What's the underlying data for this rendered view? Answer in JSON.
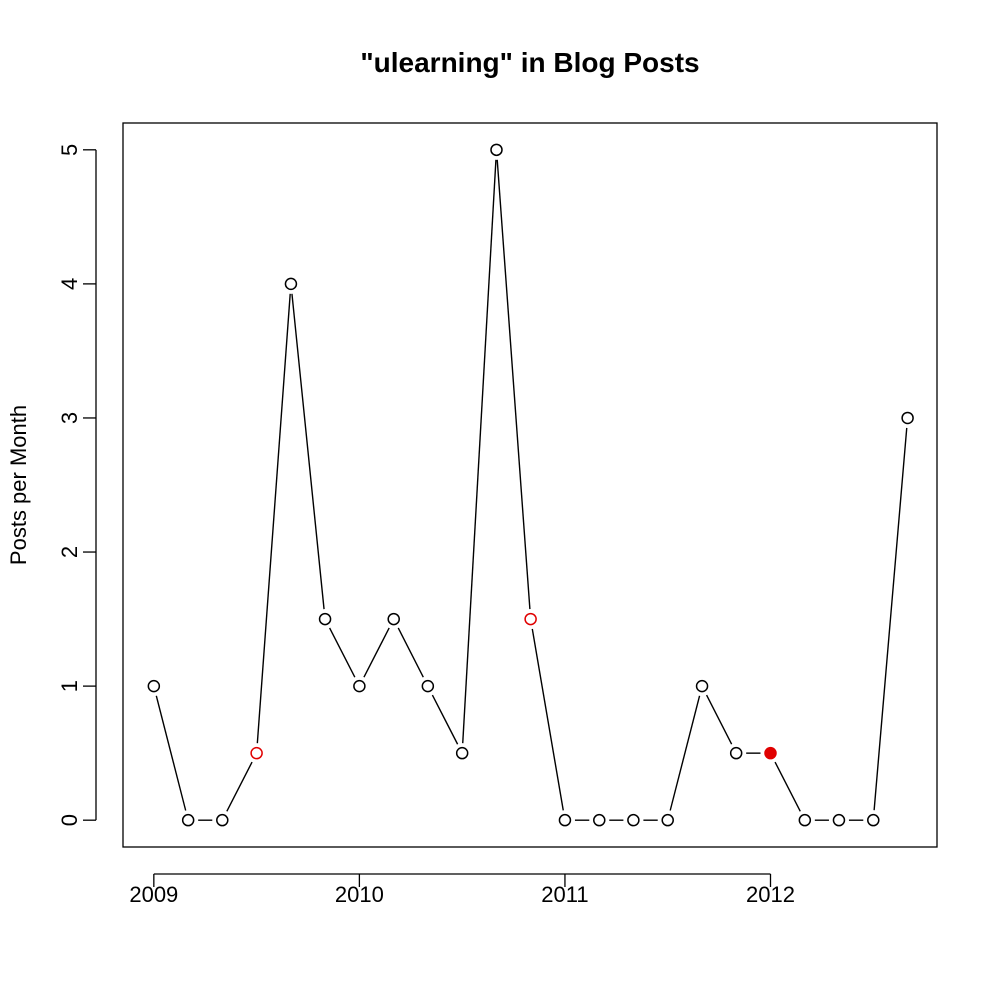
{
  "chart_data": {
    "type": "line",
    "title": "\"ulearning\" in Blog Posts",
    "xlabel": "",
    "ylabel": "Posts per Month",
    "xlim": [
      2008.85,
      2012.81
    ],
    "ylim": [
      -0.2,
      5.2
    ],
    "x_ticks": [
      {
        "value": 2009,
        "label": "2009"
      },
      {
        "value": 2010,
        "label": "2010"
      },
      {
        "value": 2011,
        "label": "2011"
      },
      {
        "value": 2012,
        "label": "2012"
      }
    ],
    "y_ticks": [
      {
        "value": 0,
        "label": "0"
      },
      {
        "value": 1,
        "label": "1"
      },
      {
        "value": 2,
        "label": "2"
      },
      {
        "value": 3,
        "label": "3"
      },
      {
        "value": 4,
        "label": "4"
      },
      {
        "value": 5,
        "label": "5"
      }
    ],
    "grid": false,
    "line_color": "#000000",
    "highlight_color": "#e00000",
    "series": [
      {
        "points": [
          {
            "x": 2009.0,
            "y": 1,
            "style": "open"
          },
          {
            "x": 2009.167,
            "y": 0,
            "style": "open"
          },
          {
            "x": 2009.333,
            "y": 0,
            "style": "open"
          },
          {
            "x": 2009.5,
            "y": 0.5,
            "style": "open-red"
          },
          {
            "x": 2009.667,
            "y": 4,
            "style": "open"
          },
          {
            "x": 2009.833,
            "y": 1.5,
            "style": "open"
          },
          {
            "x": 2010.0,
            "y": 1,
            "style": "open"
          },
          {
            "x": 2010.167,
            "y": 1.5,
            "style": "open"
          },
          {
            "x": 2010.333,
            "y": 1,
            "style": "open"
          },
          {
            "x": 2010.5,
            "y": 0.5,
            "style": "open"
          },
          {
            "x": 2010.667,
            "y": 5,
            "style": "open"
          },
          {
            "x": 2010.833,
            "y": 1.5,
            "style": "open-red"
          },
          {
            "x": 2011.0,
            "y": 0,
            "style": "open"
          },
          {
            "x": 2011.167,
            "y": 0,
            "style": "open"
          },
          {
            "x": 2011.333,
            "y": 0,
            "style": "open"
          },
          {
            "x": 2011.5,
            "y": 0,
            "style": "open"
          },
          {
            "x": 2011.667,
            "y": 1,
            "style": "open"
          },
          {
            "x": 2011.833,
            "y": 0.5,
            "style": "open"
          },
          {
            "x": 2012.0,
            "y": 0.5,
            "style": "filled-red"
          },
          {
            "x": 2012.167,
            "y": 0,
            "style": "open"
          },
          {
            "x": 2012.333,
            "y": 0,
            "style": "open"
          },
          {
            "x": 2012.5,
            "y": 0,
            "style": "open"
          },
          {
            "x": 2012.667,
            "y": 3,
            "style": "open"
          }
        ]
      }
    ]
  }
}
